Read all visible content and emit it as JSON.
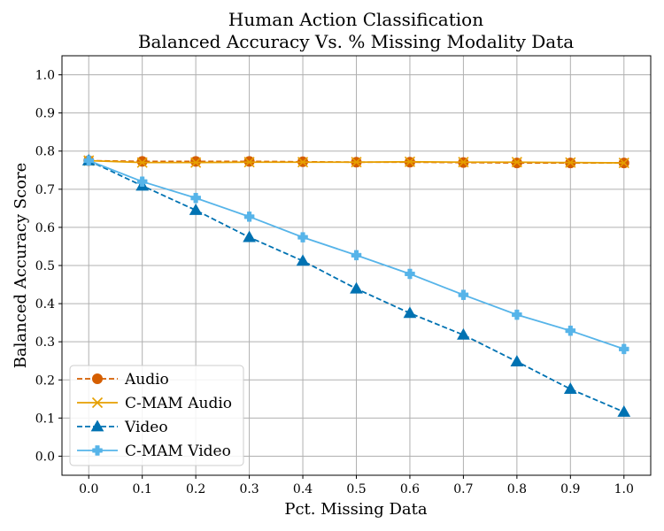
{
  "chart_data": {
    "type": "line",
    "title": [
      "Human Action Classification",
      "Balanced Accuracy Vs. % Missing Modality Data"
    ],
    "xlabel": "Pct. Missing Data",
    "ylabel": "Balanced Accuracy Score",
    "xlim": [
      -0.05,
      1.05
    ],
    "ylim": [
      -0.05,
      1.05
    ],
    "xticks": [
      "0.0",
      "0.1",
      "0.2",
      "0.3",
      "0.4",
      "0.5",
      "0.6",
      "0.7",
      "0.8",
      "0.9",
      "1.0"
    ],
    "yticks": [
      "0.0",
      "0.1",
      "0.2",
      "0.3",
      "0.4",
      "0.5",
      "0.6",
      "0.7",
      "0.8",
      "0.9",
      "1.0"
    ],
    "grid": true,
    "legend_position": "lower-left",
    "x": [
      0.0,
      0.1,
      0.2,
      0.3,
      0.4,
      0.5,
      0.6,
      0.7,
      0.8,
      0.9,
      1.0
    ],
    "series": [
      {
        "name": "Audio",
        "color": "#d55e00",
        "line": "dashed",
        "marker": "circle",
        "values": [
          0.775,
          0.773,
          0.773,
          0.773,
          0.772,
          0.771,
          0.771,
          0.77,
          0.769,
          0.769,
          0.769
        ]
      },
      {
        "name": "C-MAM Audio",
        "color": "#e69f00",
        "line": "solid",
        "marker": "x",
        "values": [
          0.775,
          0.77,
          0.77,
          0.771,
          0.771,
          0.771,
          0.772,
          0.771,
          0.771,
          0.77,
          0.769
        ]
      },
      {
        "name": "Video",
        "color": "#0072b2",
        "line": "dashed",
        "marker": "triangle",
        "values": [
          0.775,
          0.709,
          0.645,
          0.574,
          0.512,
          0.439,
          0.375,
          0.318,
          0.248,
          0.176,
          0.116
        ]
      },
      {
        "name": "C-MAM Video",
        "color": "#56b4e9",
        "line": "solid",
        "marker": "plus",
        "values": [
          0.775,
          0.72,
          0.677,
          0.628,
          0.574,
          0.527,
          0.478,
          0.423,
          0.371,
          0.329,
          0.281
        ]
      }
    ]
  }
}
